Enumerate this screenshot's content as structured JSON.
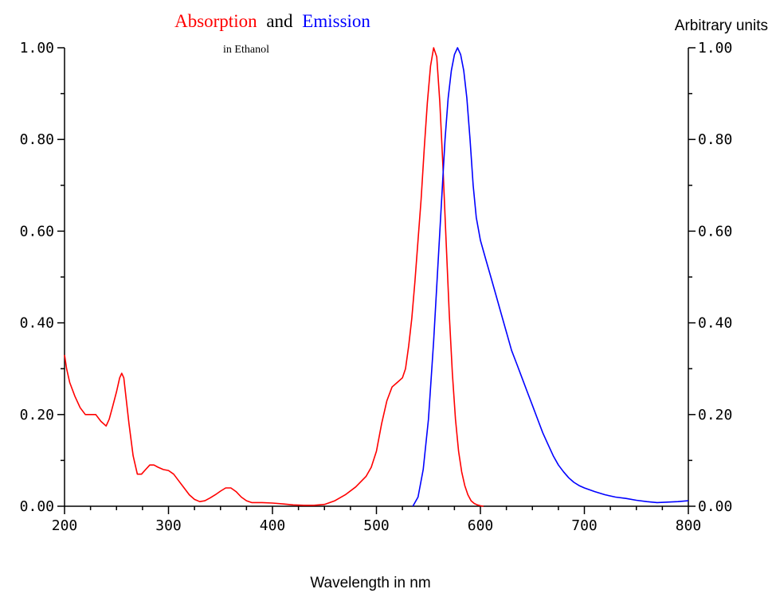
{
  "chart_data": {
    "type": "line",
    "title_parts": [
      "Absorption",
      "and",
      "Emission"
    ],
    "title_colors": [
      "#ff0000",
      "#000000",
      "#0000ff"
    ],
    "subtitle": "in Ethanol",
    "right_axis_label": "Arbitrary units",
    "xlabel": "Wavelength in nm",
    "xlim": [
      200,
      800
    ],
    "ylim": [
      0,
      1
    ],
    "x_ticks": [
      200,
      300,
      400,
      500,
      600,
      700,
      800
    ],
    "x_tick_labels": [
      "200",
      "300",
      "400",
      "500",
      "600",
      "700",
      "800"
    ],
    "y_ticks": [
      0,
      0.2,
      0.4,
      0.6,
      0.8,
      1.0
    ],
    "y_tick_labels": [
      "0.00",
      "0.20",
      "0.40",
      "0.60",
      "0.80",
      "1.00"
    ],
    "grid": false,
    "series": [
      {
        "color": "#ff0000",
        "x": [
          200,
          202,
          205,
          210,
          215,
          220,
          225,
          230,
          235,
          240,
          243,
          246,
          250,
          253,
          255,
          257,
          259,
          262,
          266,
          270,
          274,
          278,
          282,
          286,
          290,
          295,
          300,
          305,
          310,
          315,
          320,
          325,
          330,
          335,
          340,
          345,
          350,
          355,
          360,
          365,
          370,
          375,
          380,
          390,
          400,
          410,
          420,
          430,
          440,
          450,
          460,
          470,
          480,
          490,
          495,
          500,
          505,
          510,
          515,
          520,
          525,
          528,
          531,
          534,
          537,
          540,
          543,
          546,
          549,
          552,
          555,
          558,
          561,
          564,
          567,
          570,
          573,
          576,
          579,
          582,
          585,
          588,
          591,
          594,
          597,
          600,
          603
        ],
        "y": [
          0.33,
          0.3,
          0.27,
          0.24,
          0.215,
          0.2,
          0.2,
          0.2,
          0.185,
          0.175,
          0.19,
          0.215,
          0.25,
          0.28,
          0.29,
          0.28,
          0.24,
          0.18,
          0.11,
          0.07,
          0.07,
          0.08,
          0.09,
          0.09,
          0.085,
          0.08,
          0.078,
          0.07,
          0.055,
          0.04,
          0.025,
          0.015,
          0.01,
          0.012,
          0.018,
          0.025,
          0.033,
          0.04,
          0.04,
          0.032,
          0.02,
          0.012,
          0.008,
          0.008,
          0.007,
          0.005,
          0.003,
          0.002,
          0.002,
          0.004,
          0.012,
          0.025,
          0.042,
          0.065,
          0.085,
          0.12,
          0.18,
          0.23,
          0.26,
          0.27,
          0.28,
          0.3,
          0.35,
          0.41,
          0.49,
          0.58,
          0.67,
          0.78,
          0.88,
          0.96,
          1.0,
          0.98,
          0.88,
          0.74,
          0.58,
          0.42,
          0.29,
          0.19,
          0.12,
          0.075,
          0.045,
          0.025,
          0.012,
          0.006,
          0.003,
          0.001,
          0.0
        ]
      },
      {
        "color": "#0000ff",
        "x": [
          535,
          540,
          545,
          550,
          555,
          560,
          563,
          566,
          569,
          572,
          575,
          578,
          581,
          584,
          587,
          590,
          593,
          596,
          600,
          605,
          610,
          615,
          620,
          625,
          630,
          635,
          640,
          645,
          650,
          655,
          660,
          665,
          670,
          675,
          680,
          685,
          690,
          695,
          700,
          710,
          720,
          730,
          740,
          750,
          760,
          770,
          780,
          790,
          800
        ],
        "y": [
          0.0,
          0.02,
          0.08,
          0.19,
          0.36,
          0.56,
          0.68,
          0.8,
          0.89,
          0.95,
          0.985,
          1.0,
          0.985,
          0.95,
          0.89,
          0.8,
          0.7,
          0.63,
          0.58,
          0.54,
          0.5,
          0.46,
          0.42,
          0.38,
          0.34,
          0.31,
          0.28,
          0.25,
          0.22,
          0.19,
          0.16,
          0.135,
          0.11,
          0.09,
          0.075,
          0.062,
          0.052,
          0.045,
          0.04,
          0.032,
          0.025,
          0.02,
          0.017,
          0.013,
          0.01,
          0.008,
          0.009,
          0.01,
          0.012
        ]
      }
    ]
  }
}
